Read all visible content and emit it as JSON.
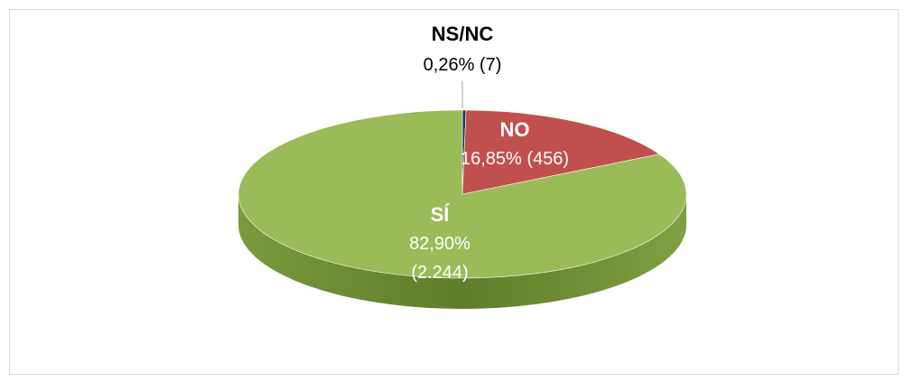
{
  "chart_data": {
    "type": "pie3d",
    "categories": [
      "NS/NC",
      "NO",
      "SÍ"
    ],
    "values": [
      0.26,
      16.85,
      82.9
    ],
    "value_labels": [
      "0,26% (7)",
      "16,85% (456)",
      "82,90% (2.244)"
    ],
    "colors": [
      "#1f3864",
      "#c0504d",
      "#9bbb59"
    ]
  }
}
